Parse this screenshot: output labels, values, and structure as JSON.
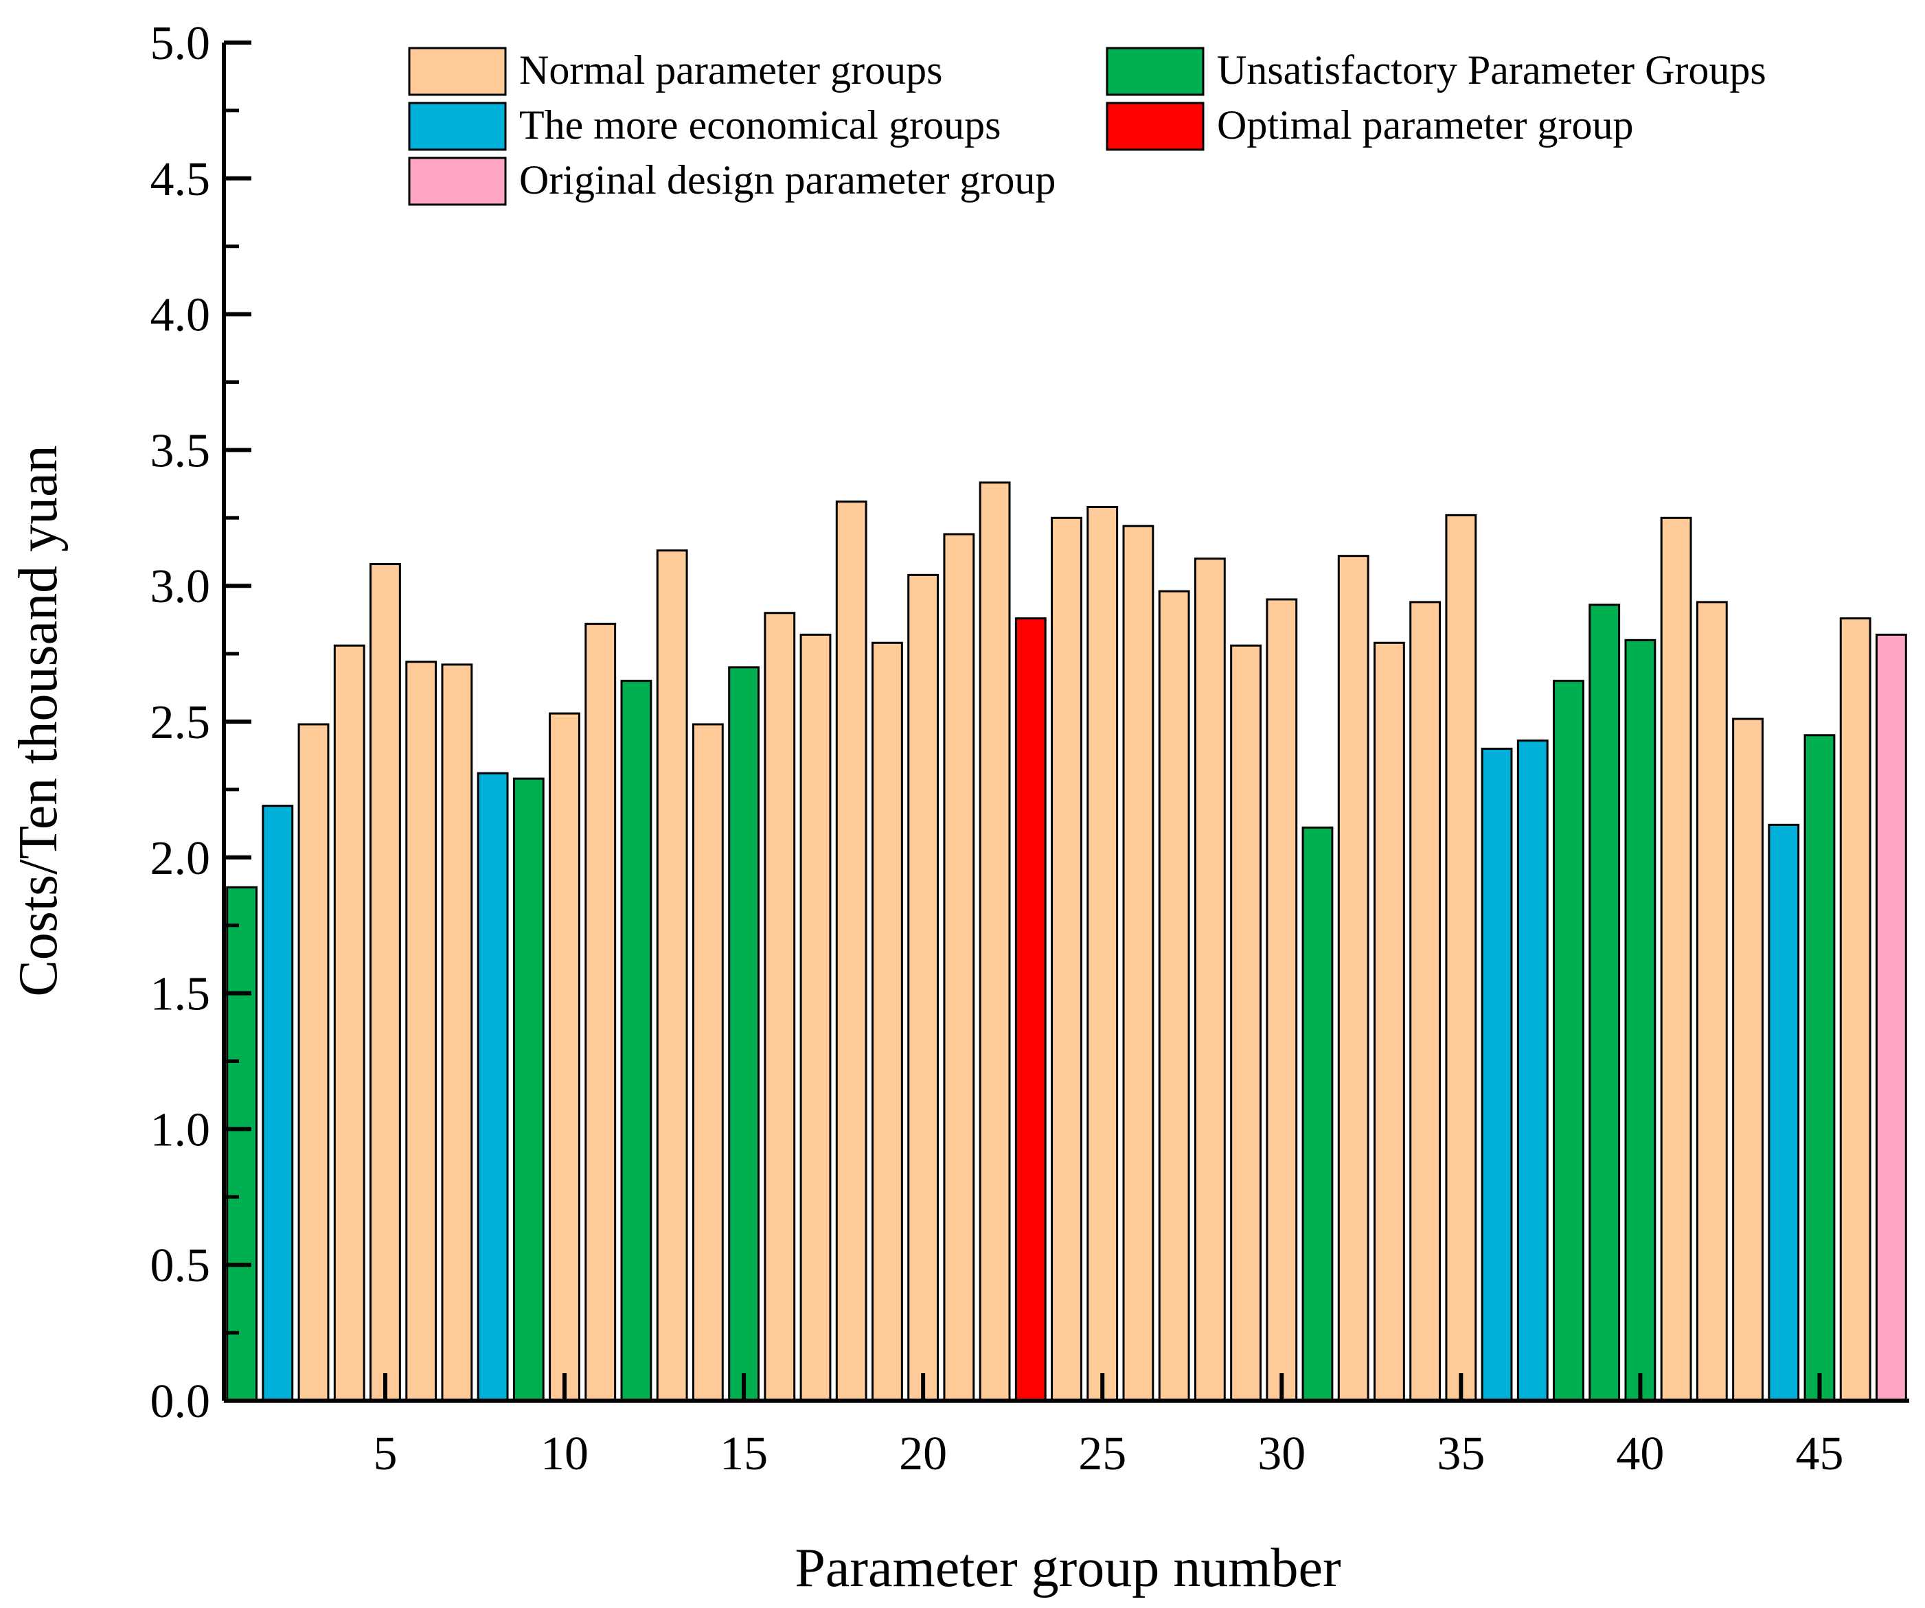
{
  "chart_data": {
    "type": "bar",
    "title": "",
    "xlabel": "Parameter group number",
    "ylabel": "Costs/Ten thousand yuan",
    "ylim": [
      0,
      5.0
    ],
    "xlim": [
      0.5,
      47.5
    ],
    "y_ticks": [
      "0.0",
      "0.5",
      "1.0",
      "1.5",
      "2.0",
      "2.5",
      "3.0",
      "3.5",
      "4.0",
      "4.5",
      "5.0"
    ],
    "x_ticks": [
      "5",
      "10",
      "15",
      "20",
      "25",
      "30",
      "35",
      "40",
      "45"
    ],
    "grid": false,
    "legend_position": "top",
    "categories": [
      {
        "key": "normal",
        "label": "Normal parameter groups",
        "color": "#FFCC99"
      },
      {
        "key": "unsatisfactory",
        "label": "Unsatisfactory Parameter Groups",
        "color": "#00B050"
      },
      {
        "key": "economical",
        "label": "The more economical groups",
        "color": "#00B0D8"
      },
      {
        "key": "optimal",
        "label": "Optimal parameter group",
        "color": "#FF0000"
      },
      {
        "key": "original",
        "label": "Original design parameter group",
        "color": "#FFA6C4"
      }
    ],
    "bars": [
      {
        "x": 1,
        "value": 1.89,
        "group": "unsatisfactory"
      },
      {
        "x": 2,
        "value": 2.19,
        "group": "economical"
      },
      {
        "x": 3,
        "value": 2.49,
        "group": "normal"
      },
      {
        "x": 4,
        "value": 2.78,
        "group": "normal"
      },
      {
        "x": 5,
        "value": 3.08,
        "group": "normal"
      },
      {
        "x": 6,
        "value": 2.72,
        "group": "normal"
      },
      {
        "x": 7,
        "value": 2.71,
        "group": "normal"
      },
      {
        "x": 8,
        "value": 2.31,
        "group": "economical"
      },
      {
        "x": 9,
        "value": 2.29,
        "group": "unsatisfactory"
      },
      {
        "x": 10,
        "value": 2.53,
        "group": "normal"
      },
      {
        "x": 11,
        "value": 2.86,
        "group": "normal"
      },
      {
        "x": 12,
        "value": 2.65,
        "group": "unsatisfactory"
      },
      {
        "x": 13,
        "value": 3.13,
        "group": "normal"
      },
      {
        "x": 14,
        "value": 2.49,
        "group": "normal"
      },
      {
        "x": 15,
        "value": 2.7,
        "group": "unsatisfactory"
      },
      {
        "x": 16,
        "value": 2.9,
        "group": "normal"
      },
      {
        "x": 17,
        "value": 2.82,
        "group": "normal"
      },
      {
        "x": 18,
        "value": 3.31,
        "group": "normal"
      },
      {
        "x": 19,
        "value": 2.79,
        "group": "normal"
      },
      {
        "x": 20,
        "value": 3.04,
        "group": "normal"
      },
      {
        "x": 21,
        "value": 3.19,
        "group": "normal"
      },
      {
        "x": 22,
        "value": 3.38,
        "group": "normal"
      },
      {
        "x": 23,
        "value": 2.88,
        "group": "optimal"
      },
      {
        "x": 24,
        "value": 3.25,
        "group": "normal"
      },
      {
        "x": 25,
        "value": 3.29,
        "group": "normal"
      },
      {
        "x": 26,
        "value": 3.22,
        "group": "normal"
      },
      {
        "x": 27,
        "value": 2.98,
        "group": "normal"
      },
      {
        "x": 28,
        "value": 3.1,
        "group": "normal"
      },
      {
        "x": 29,
        "value": 2.78,
        "group": "normal"
      },
      {
        "x": 30,
        "value": 2.95,
        "group": "normal"
      },
      {
        "x": 31,
        "value": 2.11,
        "group": "unsatisfactory"
      },
      {
        "x": 32,
        "value": 3.11,
        "group": "normal"
      },
      {
        "x": 33,
        "value": 2.79,
        "group": "normal"
      },
      {
        "x": 34,
        "value": 2.94,
        "group": "normal"
      },
      {
        "x": 35,
        "value": 3.26,
        "group": "normal"
      },
      {
        "x": 36,
        "value": 2.4,
        "group": "economical"
      },
      {
        "x": 37,
        "value": 2.43,
        "group": "economical"
      },
      {
        "x": 38,
        "value": 2.65,
        "group": "unsatisfactory"
      },
      {
        "x": 39,
        "value": 2.93,
        "group": "unsatisfactory"
      },
      {
        "x": 40,
        "value": 2.8,
        "group": "unsatisfactory"
      },
      {
        "x": 41,
        "value": 3.25,
        "group": "normal"
      },
      {
        "x": 42,
        "value": 2.94,
        "group": "normal"
      },
      {
        "x": 43,
        "value": 2.51,
        "group": "normal"
      },
      {
        "x": 44,
        "value": 2.12,
        "group": "economical"
      },
      {
        "x": 45,
        "value": 2.45,
        "group": "unsatisfactory"
      },
      {
        "x": 46,
        "value": 2.88,
        "group": "normal"
      },
      {
        "x": 47,
        "value": 2.82,
        "group": "original"
      }
    ]
  }
}
